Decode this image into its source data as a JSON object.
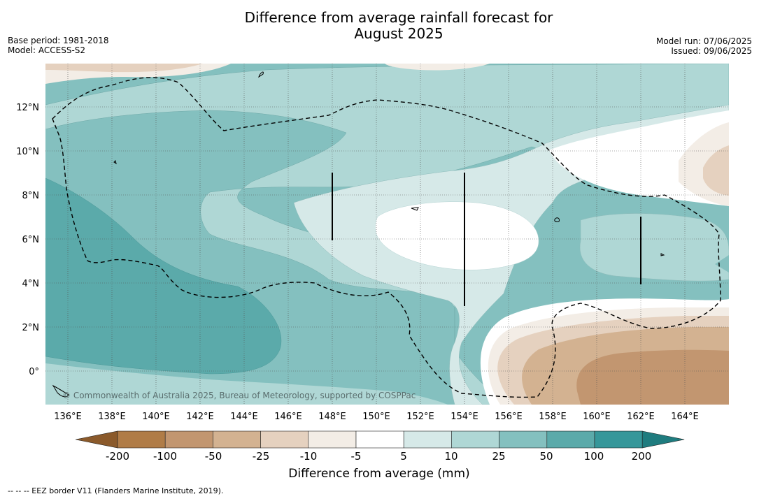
{
  "title_line1": "Difference from average rainfall forecast for",
  "title_line2": "August 2025",
  "base_period": "Base period: 1981-2018",
  "model": "Model: ACCESS-S2",
  "model_run": "Model run: 07/06/2025",
  "issued": "Issued: 09/06/2025",
  "copyright": "© Commonwealth of Australia 2025, Bureau of Meteorology, supported by COSPPac",
  "lat_labels": [
    "12°N",
    "10°N",
    "8°N",
    "6°N",
    "4°N",
    "2°N",
    "0°"
  ],
  "lon_labels": [
    "136°E",
    "138°E",
    "140°E",
    "142°E",
    "144°E",
    "146°E",
    "148°E",
    "150°E",
    "152°E",
    "154°E",
    "156°E",
    "158°E",
    "160°E",
    "162°E",
    "164°E"
  ],
  "colorbar": {
    "title": "Difference from average (mm)",
    "ticks": [
      "-200",
      "-100",
      "-50",
      "-25",
      "-10",
      "-5",
      "5",
      "10",
      "25",
      "50",
      "100",
      "200"
    ],
    "colors": [
      "#8b5a2b",
      "#b07c47",
      "#c29670",
      "#d3b291",
      "#e5d1bf",
      "#f3ede6",
      "#ffffff",
      "#d6e9e8",
      "#afd7d5",
      "#84c0bf",
      "#5baaaa",
      "#36979a",
      "#1f7c7f"
    ]
  },
  "footnote": "--  --  -- EEZ border V11 (Flanders Marine Institute, 2019)."
}
